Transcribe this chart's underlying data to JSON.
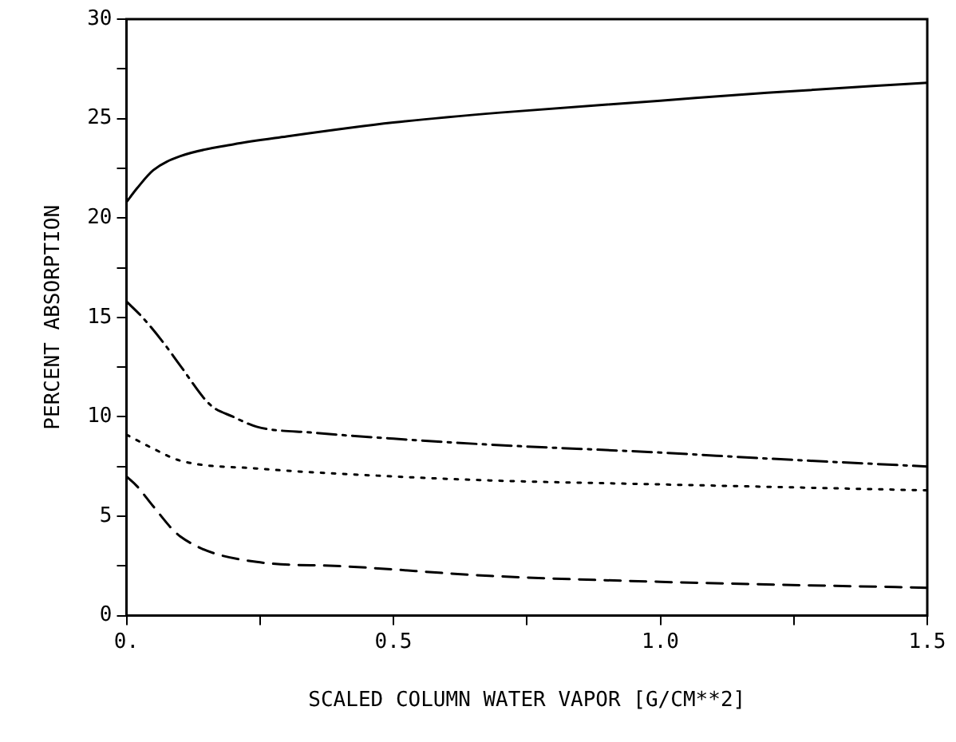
{
  "chart_data": {
    "type": "line",
    "xlabel": "SCALED COLUMN WATER VAPOR [G/CM**2]",
    "ylabel": "PERCENT ABSORPTION",
    "xlim": [
      0,
      1.5
    ],
    "ylim": [
      0,
      30
    ],
    "xticks": [
      {
        "value": 0,
        "label": "0."
      },
      {
        "value": 0.25,
        "label": null
      },
      {
        "value": 0.5,
        "label": "0.5"
      },
      {
        "value": 0.75,
        "label": null
      },
      {
        "value": 1,
        "label": "1.0"
      },
      {
        "value": 1.25,
        "label": null
      },
      {
        "value": 1.5,
        "label": "1.5"
      }
    ],
    "yticks": [
      0,
      {
        "value": 2.5,
        "label": null
      },
      5,
      {
        "value": 7.5,
        "label": null
      },
      10,
      {
        "value": 12.5,
        "label": null
      },
      15,
      {
        "value": 17.5,
        "label": null
      },
      20,
      {
        "value": 22.5,
        "label": null
      },
      25,
      {
        "value": 27.5,
        "label": null
      },
      30
    ],
    "grid": false,
    "legend": false,
    "marker": "none",
    "series": [
      {
        "color": "#000000",
        "line_style": "solid",
        "x": [
          0,
          0.02,
          0.05,
          0.1,
          0.2,
          0.3,
          0.5,
          0.7,
          1.0,
          1.2,
          1.5
        ],
        "values": [
          20.8,
          21.5,
          22.4,
          23.1,
          23.7,
          24.1,
          24.8,
          25.3,
          25.9,
          26.3,
          26.8
        ]
      },
      {
        "color": "#000000",
        "line_style": "dashdot",
        "x": [
          0,
          0.03,
          0.07,
          0.1,
          0.157,
          0.2,
          0.244,
          0.35,
          0.5,
          0.68,
          1.0,
          1.2,
          1.5
        ],
        "values": [
          15.8,
          15.0,
          13.7,
          12.6,
          10.6,
          10.0,
          9.5,
          9.2,
          8.9,
          8.6,
          8.2,
          7.9,
          7.5
        ]
      },
      {
        "color": "#000000",
        "line_style": "dotted",
        "x": [
          0,
          0.05,
          0.1,
          0.244,
          0.5,
          0.68,
          1.0,
          1.5
        ],
        "values": [
          9.1,
          8.4,
          7.8,
          7.4,
          7.0,
          6.8,
          6.6,
          6.3
        ]
      },
      {
        "color": "#000000",
        "line_style": "dashed",
        "x": [
          0,
          0.02,
          0.05,
          0.1,
          0.244,
          0.39,
          0.68,
          1.0,
          1.5
        ],
        "values": [
          7.0,
          6.5,
          5.5,
          4.0,
          2.7,
          2.5,
          2.0,
          1.7,
          1.4
        ]
      }
    ]
  }
}
